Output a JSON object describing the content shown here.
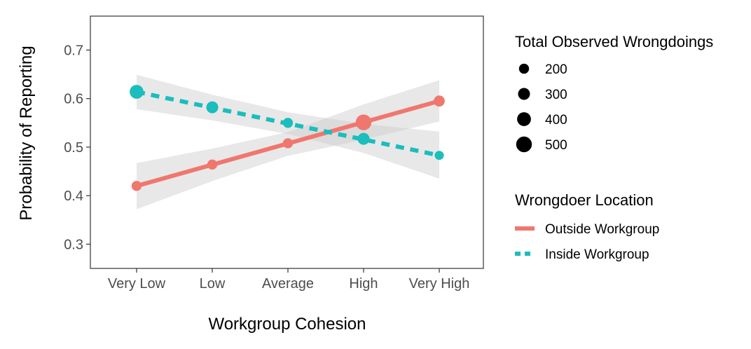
{
  "chart_data": {
    "type": "line",
    "xlabel": "Workgroup Cohesion",
    "ylabel": "Probability of Reporting",
    "categories": [
      "Very Low",
      "Low",
      "Average",
      "High",
      "Very High"
    ],
    "ylim": [
      0.25,
      0.77
    ],
    "yticks": [
      0.3,
      0.4,
      0.5,
      0.6,
      0.7
    ],
    "ytick_labels": [
      "0.3",
      "0.4",
      "0.5",
      "0.6",
      "0.7"
    ],
    "grid": false,
    "series": [
      {
        "name": "Outside Workgroup",
        "color": "#f0776e",
        "line_style": "solid",
        "values": [
          0.42,
          0.464,
          0.508,
          0.551,
          0.595
        ],
        "sizes": [
          200,
          200,
          200,
          500,
          250
        ],
        "fit_start": 0.42,
        "fit_end": 0.595,
        "ci_lower": [
          0.372,
          0.43,
          0.482,
          0.515,
          0.553
        ],
        "ci_upper": [
          0.467,
          0.497,
          0.531,
          0.588,
          0.638
        ]
      },
      {
        "name": "Inside Workgroup",
        "color": "#1bbdbd",
        "line_style": "dashed",
        "values": [
          0.614,
          0.582,
          0.55,
          0.517,
          0.483
        ],
        "sizes": [
          400,
          300,
          200,
          300,
          150
        ],
        "fit_start": 0.614,
        "fit_end": 0.483,
        "ci_lower": [
          0.578,
          0.555,
          0.527,
          0.488,
          0.435
        ],
        "ci_upper": [
          0.649,
          0.608,
          0.572,
          0.548,
          0.532
        ]
      }
    ],
    "size_legend": {
      "title": "Total Observed Wrongdoings",
      "values": [
        200,
        300,
        400,
        500
      ],
      "labels": [
        "200",
        "300",
        "400",
        "500"
      ]
    },
    "color_legend": {
      "title": "Wrongdoer Location",
      "entries": [
        "Outside Workgroup",
        "Inside Workgroup"
      ]
    },
    "legend_position": "right",
    "ci_color": "#cccccc"
  }
}
